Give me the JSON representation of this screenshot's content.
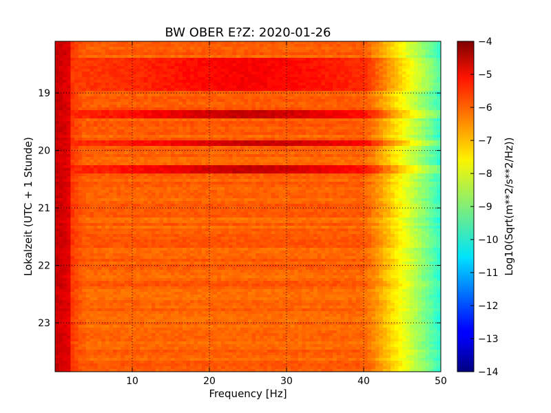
{
  "chart_data": {
    "type": "heatmap",
    "title": "BW OBER E?Z: 2020-01-26",
    "xlabel": "Frequency [Hz]",
    "ylabel": "Lokalzeit (UTC + 1 Stunde)",
    "xlim": [
      0,
      50
    ],
    "ylim": [
      18.1,
      23.85
    ],
    "x_ticks": [
      10,
      20,
      30,
      40,
      50
    ],
    "y_ticks": [
      19,
      20,
      21,
      22,
      23
    ],
    "grid": true,
    "colorbar": {
      "label": "Log10(Sqrt(m**2/s**2/Hz))",
      "range": [
        -14,
        -4
      ],
      "ticks": [
        -4,
        -5,
        -6,
        -7,
        -8,
        -9,
        -10,
        -11,
        -12,
        -13,
        -14
      ],
      "colormap": "jet"
    },
    "background_level": -6.2,
    "low_frequency_level": -5.0,
    "high_frequency_rolloff": {
      "start_hz": 40,
      "level_at_50hz": -9.8
    },
    "bands": [
      {
        "t_start": 18.4,
        "t_end": 18.95,
        "level": -5.2,
        "peak_hz": 25
      },
      {
        "t_start": 19.3,
        "t_end": 19.45,
        "level": -4.7,
        "peak_hz": 25
      },
      {
        "t_start": 19.83,
        "t_end": 19.93,
        "level": -4.7,
        "peak_hz": 27
      },
      {
        "t_start": 20.27,
        "t_end": 20.42,
        "level": -4.7,
        "peak_hz": 25
      }
    ],
    "colors": {
      "axis": "#000000",
      "grid": "#000000"
    }
  }
}
